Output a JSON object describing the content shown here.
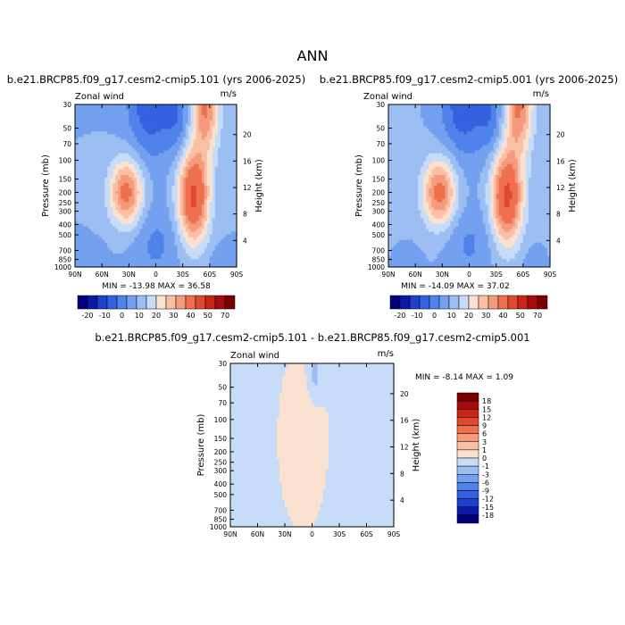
{
  "figure": {
    "title": "ANN"
  },
  "palettes": {
    "absolute": [
      "#00007a",
      "#0a1aa4",
      "#1f3fcf",
      "#3461e0",
      "#4f82ea",
      "#74a1ef",
      "#9dbef3",
      "#c7dcf8",
      "#fbe2d0",
      "#f9c0a5",
      "#f59a7b",
      "#ee704f",
      "#df4a2e",
      "#c82618",
      "#a60d0a",
      "#7a0000"
    ],
    "difference": [
      "#00007a",
      "#0a1aa4",
      "#1f3fcf",
      "#3461e0",
      "#4f82ea",
      "#74a1ef",
      "#9dbef3",
      "#c7dcf8",
      "#fbe2d0",
      "#f9c0a5",
      "#f59a7b",
      "#ee704f",
      "#df4a2e",
      "#c82618",
      "#a60d0a",
      "#7a0000"
    ]
  },
  "chart_data": [
    {
      "type": "heatmap",
      "title": "b.e21.BRCP85.f09_g17.cesm2-cmip5.101 (yrs 2006-2025)",
      "variable": "Zonal wind",
      "units": "m/s",
      "ylabel": "Pressure (mb)",
      "ylabel_right": "Height (km)",
      "x_ticks": [
        "90N",
        "60N",
        "30N",
        "0",
        "30S",
        "60S",
        "90S"
      ],
      "y_ticks": [
        "30",
        "50",
        "70",
        "100",
        "150",
        "200",
        "250",
        "300",
        "400",
        "500",
        "700",
        "850",
        "1000"
      ],
      "y_ticks_right": [
        "20",
        "16",
        "12",
        "8",
        "4"
      ],
      "stats": "MIN = -13.98   MAX =  36.58",
      "min": -13.98,
      "max": 36.58,
      "colorbar_labels": [
        "-20",
        "-10",
        "0",
        "10",
        "20",
        "30",
        "40",
        "50",
        "70"
      ],
      "colorbar_levels": [
        -25,
        -20,
        -15,
        -10,
        -5,
        0,
        5,
        10,
        15,
        20,
        25,
        30,
        40,
        50,
        60,
        70,
        80
      ]
    },
    {
      "type": "heatmap",
      "title": "b.e21.BRCP85.f09_g17.cesm2-cmip5.001 (yrs 2006-2025)",
      "variable": "Zonal wind",
      "units": "m/s",
      "ylabel": "Pressure (mb)",
      "ylabel_right": "Height (km)",
      "x_ticks": [
        "90N",
        "60N",
        "30N",
        "0",
        "30S",
        "60S",
        "90S"
      ],
      "y_ticks": [
        "30",
        "50",
        "70",
        "100",
        "150",
        "200",
        "250",
        "300",
        "400",
        "500",
        "700",
        "850",
        "1000"
      ],
      "y_ticks_right": [
        "20",
        "16",
        "12",
        "8",
        "4"
      ],
      "stats": "MIN = -14.09   MAX =  37.02",
      "min": -14.09,
      "max": 37.02,
      "colorbar_labels": [
        "-20",
        "-10",
        "0",
        "10",
        "20",
        "30",
        "40",
        "50",
        "70"
      ],
      "colorbar_levels": [
        -25,
        -20,
        -15,
        -10,
        -5,
        0,
        5,
        10,
        15,
        20,
        25,
        30,
        40,
        50,
        60,
        70,
        80
      ]
    },
    {
      "type": "heatmap",
      "title": "b.e21.BRCP85.f09_g17.cesm2-cmip5.101 - b.e21.BRCP85.f09_g17.cesm2-cmip5.001",
      "variable": "Zonal wind",
      "units": "m/s",
      "ylabel": "Pressure (mb)",
      "ylabel_right": "Height (km)",
      "x_ticks": [
        "90N",
        "60N",
        "30N",
        "0",
        "30S",
        "60S",
        "90S"
      ],
      "y_ticks": [
        "30",
        "50",
        "70",
        "100",
        "150",
        "200",
        "250",
        "300",
        "400",
        "500",
        "700",
        "850",
        "1000"
      ],
      "y_ticks_right": [
        "20",
        "16",
        "12",
        "8",
        "4"
      ],
      "stats": "MIN =   -8.14   MAX =    1.09",
      "min": -8.14,
      "max": 1.09,
      "colorbar_labels": [
        "18",
        "15",
        "12",
        "9",
        "6",
        "3",
        "1",
        "0",
        "-1",
        "-3",
        "-6",
        "-9",
        "-12",
        "-15",
        "-18"
      ],
      "colorbar_levels": [
        -21,
        -18,
        -15,
        -12,
        -9,
        -6,
        -3,
        -1,
        0,
        1,
        3,
        6,
        9,
        12,
        15,
        18,
        21
      ]
    }
  ]
}
